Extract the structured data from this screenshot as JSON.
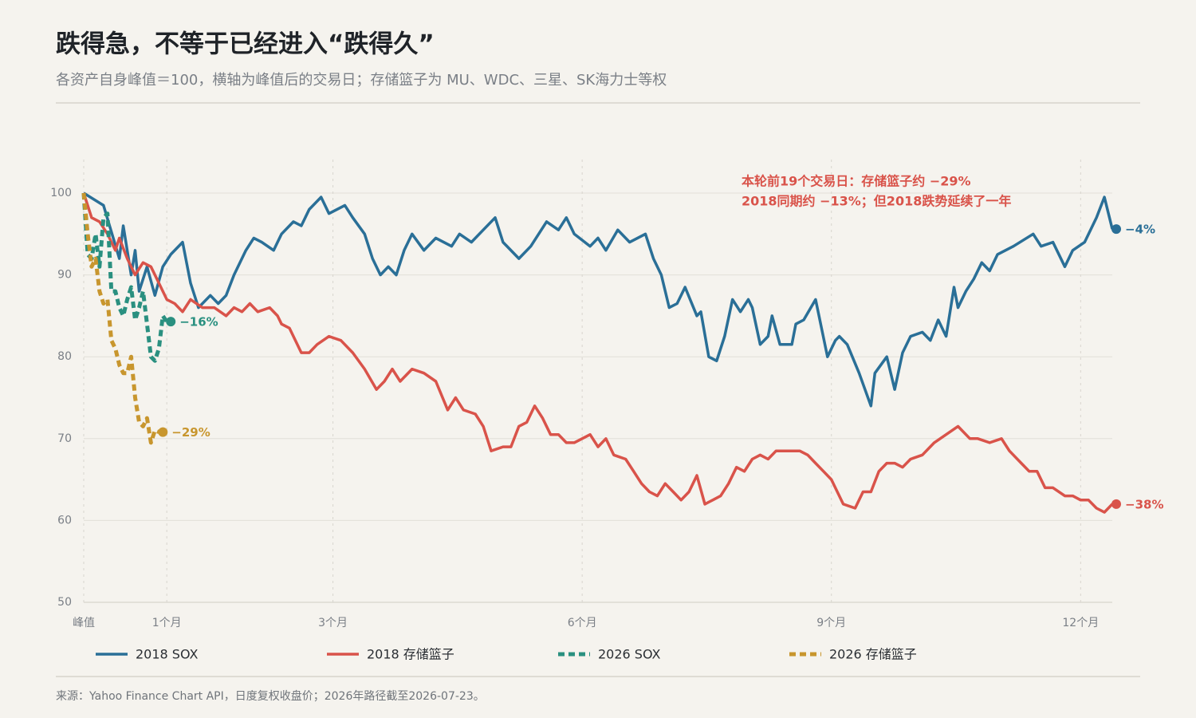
{
  "chart_data": {
    "type": "line",
    "title": "跌得急，不等于已经进入“跌得久”",
    "subtitle": "各资产自身峰值＝100，横轴为峰值后的交易日；存储篮子为 MU、WDC、三星、SK海力士等权",
    "annotation": [
      "本轮前19个交易日：存储篮子约 −29%",
      "2018同期约 −13%；但2018跌势延续了一年"
    ],
    "source": "来源：Yahoo Finance Chart API，日度复权收盘价；2026年路径截至2026-07-23。",
    "xlim": [
      0,
      260
    ],
    "ylim": [
      50,
      100
    ],
    "xticks": [
      {
        "value": 0,
        "label": "峰值"
      },
      {
        "value": 21,
        "label": "1个月"
      },
      {
        "value": 63,
        "label": "3个月"
      },
      {
        "value": 126,
        "label": "6个月"
      },
      {
        "value": 189,
        "label": "9个月"
      },
      {
        "value": 252,
        "label": "12个月"
      }
    ],
    "yticks": [
      50,
      60,
      70,
      80,
      90,
      100
    ],
    "grid": true,
    "legend": "bottom",
    "series": [
      {
        "name": "2018 SOX",
        "color": "#2a6f97",
        "dashed": false,
        "end_label": "−4%",
        "x": [
          0,
          5,
          9,
          10,
          12,
          13,
          14,
          16,
          18,
          20,
          22,
          25,
          27,
          29,
          32,
          34,
          36,
          38,
          41,
          43,
          45,
          48,
          50,
          53,
          55,
          57,
          60,
          62,
          66,
          68,
          71,
          73,
          75,
          77,
          79,
          81,
          83,
          86,
          89,
          93,
          95,
          98,
          101,
          104,
          106,
          110,
          113,
          117,
          120,
          122,
          124,
          128,
          130,
          132,
          135,
          138,
          142,
          144,
          146,
          148,
          150,
          152,
          155,
          156,
          158,
          160,
          162,
          164,
          166,
          168,
          169,
          171,
          173,
          174,
          176,
          179,
          180,
          182,
          185,
          188,
          190,
          191,
          193,
          196,
          199,
          200,
          203,
          205,
          207,
          209,
          212,
          214,
          216,
          218,
          220,
          221,
          223,
          225,
          227,
          229,
          231,
          235,
          240,
          242,
          245,
          248,
          250,
          253,
          256,
          258,
          260
        ],
        "values": [
          100,
          98.5,
          92,
          96,
          90,
          93,
          88,
          91,
          87.5,
          91,
          92.5,
          94,
          89,
          86,
          87.5,
          86.5,
          87.5,
          90,
          93,
          94.5,
          94,
          93,
          95,
          96.5,
          96,
          98,
          99.5,
          97.5,
          98.5,
          97,
          95,
          92,
          90,
          91,
          90,
          93,
          95,
          93,
          94.5,
          93.5,
          95,
          94,
          95.5,
          97,
          94,
          92,
          93.5,
          96.5,
          95.5,
          97,
          95,
          93.5,
          94.5,
          93,
          95.5,
          94,
          95,
          92,
          90,
          86,
          86.5,
          88.5,
          85,
          85.5,
          80,
          79.5,
          82.5,
          87,
          85.5,
          87,
          86,
          81.5,
          82.5,
          85,
          81.5,
          81.5,
          84,
          84.5,
          87,
          80,
          82,
          82.5,
          81.5,
          78,
          74,
          78,
          80,
          76,
          80.5,
          82.5,
          83,
          82,
          84.5,
          82.5,
          88.5,
          86,
          88,
          89.5,
          91.5,
          90.5,
          92.5,
          93.5,
          95,
          93.5,
          94,
          91,
          93,
          94,
          97,
          99.5,
          95.6
        ]
      },
      {
        "name": "2018 存储篮子",
        "color": "#d9534a",
        "dashed": false,
        "end_label": "−38%",
        "x": [
          0,
          2,
          4,
          6,
          8,
          9,
          11,
          13,
          15,
          17,
          19,
          21,
          23,
          25,
          27,
          30,
          33,
          36,
          38,
          40,
          42,
          44,
          47,
          49,
          50,
          52,
          55,
          57,
          59,
          62,
          65,
          68,
          71,
          74,
          76,
          78,
          80,
          83,
          86,
          89,
          92,
          94,
          96,
          99,
          101,
          103,
          106,
          108,
          110,
          112,
          114,
          116,
          118,
          120,
          122,
          124,
          128,
          130,
          132,
          134,
          137,
          139,
          141,
          143,
          145,
          147,
          149,
          151,
          153,
          155,
          157,
          159,
          161,
          163,
          165,
          167,
          169,
          171,
          173,
          175,
          177,
          179,
          181,
          183,
          185,
          187,
          189,
          192,
          195,
          197,
          199,
          201,
          203,
          205,
          207,
          209,
          212,
          215,
          218,
          221,
          224,
          226,
          229,
          232,
          234,
          237,
          239,
          241,
          243,
          245,
          248,
          250,
          252,
          254,
          256,
          258,
          260
        ],
        "values": [
          100,
          97,
          96.5,
          95,
          93,
          94.5,
          92,
          90,
          91.5,
          91,
          89,
          87,
          86.5,
          85.5,
          87,
          86,
          86,
          85,
          86,
          85.5,
          86.5,
          85.5,
          86,
          85,
          84,
          83.5,
          80.5,
          80.5,
          81.5,
          82.5,
          82,
          80.5,
          78.5,
          76,
          77,
          78.5,
          77,
          78.5,
          78,
          77,
          73.5,
          75,
          73.5,
          73,
          71.5,
          68.5,
          69,
          69,
          71.5,
          72,
          74,
          72.5,
          70.5,
          70.5,
          69.5,
          69.5,
          70.5,
          69,
          70,
          68,
          67.5,
          66,
          64.5,
          63.5,
          63,
          64.5,
          63.5,
          62.5,
          63.5,
          65.5,
          62,
          62.5,
          63,
          64.5,
          66.5,
          66,
          67.5,
          68,
          67.5,
          68.5,
          68.5,
          68.5,
          68.5,
          68,
          67,
          66,
          65,
          62,
          61.5,
          63.5,
          63.5,
          66,
          67,
          67,
          66.5,
          67.5,
          68,
          69.5,
          70.5,
          71.5,
          70,
          70,
          69.5,
          70,
          68.5,
          67,
          66,
          66,
          64,
          64,
          63,
          63,
          62.5,
          62.5,
          61.5,
          61,
          62
        ]
      },
      {
        "name": "2026 SOX",
        "color": "#2a9080",
        "dashed": true,
        "end_label": "−16%",
        "x": [
          0,
          1,
          2,
          3,
          4,
          5,
          6,
          7,
          8,
          9,
          10,
          11,
          12,
          13,
          14,
          15,
          16,
          17,
          18,
          19,
          20,
          21
        ],
        "values": [
          100,
          92.5,
          92,
          95,
          91,
          97,
          97.5,
          88,
          88,
          86,
          85,
          87,
          88.5,
          84.5,
          86,
          88,
          84,
          80,
          79.5,
          81,
          85,
          84.3
        ]
      },
      {
        "name": "2026 存储篮子",
        "color": "#c8962e",
        "dashed": true,
        "end_label": "−29%",
        "x": [
          0,
          1,
          2,
          3,
          4,
          5,
          6,
          7,
          8,
          9,
          10,
          11,
          12,
          13,
          14,
          15,
          16,
          17,
          18,
          19
        ],
        "values": [
          100,
          95,
          91,
          92,
          88,
          86.5,
          87,
          82,
          81,
          79,
          78,
          78,
          80,
          75,
          72,
          71.5,
          72.5,
          69.5,
          71,
          70.8
        ]
      }
    ]
  }
}
